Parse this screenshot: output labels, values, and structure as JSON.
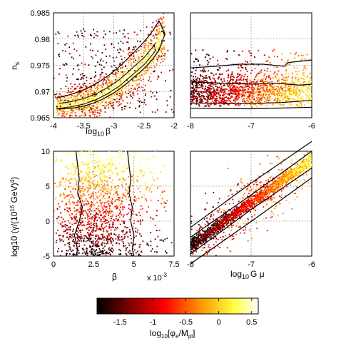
{
  "chart_data": [
    {
      "type": "scatter",
      "panel": "top-left",
      "xlabel": "log10 β",
      "ylabel": "ns",
      "xlim": [
        -4,
        -2
      ],
      "ylim": [
        0.965,
        0.985
      ],
      "xticks": [
        "-4",
        "-3.5",
        "-3",
        "-2.5",
        "-2"
      ],
      "yticks": [
        "0.965",
        "0.97",
        "0.975",
        "0.98",
        "0.985"
      ],
      "grid": true,
      "color_variable": "log10[φe/Mpl]",
      "band": {
        "x": [
          -3.9,
          -3.7,
          -3.5,
          -3.3,
          -3.1,
          -2.9,
          -2.7,
          -2.5,
          -2.35,
          -2.2
        ],
        "y": [
          0.9672,
          0.9675,
          0.968,
          0.9688,
          0.97,
          0.9715,
          0.9735,
          0.9755,
          0.9775,
          0.98
        ],
        "color_at_center": 0.3
      }
    },
    {
      "type": "scatter",
      "panel": "top-right",
      "xlabel": "",
      "ylabel": "",
      "xlim": [
        -8,
        -6
      ],
      "ylim": [
        0.965,
        0.985
      ],
      "xticks": [
        "-8",
        "-7",
        "-6"
      ],
      "grid": true,
      "color_variable": "log10[φe/Mpl]",
      "trend": "color increases with log10 Gμ; points spread 0.9665–0.976"
    },
    {
      "type": "scatter",
      "panel": "bottom-left",
      "xlabel": "β",
      "xscale_label": "x 10",
      "xscale_exponent": "-3",
      "ylabel": "log10 (γ/(10",
      "ylabel_exp1": "16",
      "ylabel_mid": " GeV)",
      "ylabel_exp2": "4",
      "ylabel_end": ")",
      "xlim": [
        0,
        7.5
      ],
      "ylim": [
        -5,
        10
      ],
      "xticks": [
        "0",
        "2.5",
        "5",
        "7.5"
      ],
      "yticks": [
        "-5",
        "0",
        "5",
        "10"
      ],
      "grid": true,
      "color_variable": "log10[φe/Mpl]",
      "trend": "color increases with y; points concentrated at β < 5"
    },
    {
      "type": "scatter",
      "panel": "bottom-right",
      "xlabel": "log10 G μ",
      "ylabel": "",
      "xlim": [
        -8,
        -6
      ],
      "ylim": [
        -5,
        10
      ],
      "xticks": [
        "-8",
        "-7",
        "-6"
      ],
      "grid": true,
      "color_variable": "log10[φe/Mpl]",
      "band": {
        "x": [
          -8,
          -7.5,
          -7,
          -6.5,
          -6
        ],
        "y": [
          -3.5,
          -0.3,
          2.8,
          5.8,
          8.8
        ]
      }
    }
  ],
  "colorbar": {
    "label_main": "log",
    "label_sub": "10",
    "label_rest": "[φ",
    "label_sub2": "e",
    "label_mid": "/M",
    "label_sub3": "pl",
    "label_end": "]",
    "ticks": [
      "-1.5",
      "-1",
      "-0.5",
      "0",
      "0.5"
    ],
    "range": [
      -1.85,
      0.6
    ],
    "colormap": [
      "#000000",
      "#7a0000",
      "#ff0000",
      "#ff9a00",
      "#ffff40",
      "#ffffff"
    ]
  },
  "labels": {
    "tl_y_main": "n",
    "tl_y_sub": "s",
    "tl_x_main": "log",
    "tl_x_sub": "10",
    "tl_x_sym": "β",
    "br_x_main": "log",
    "br_x_sub": "10",
    "br_x_sym": "G μ",
    "bl_x_sym": "β",
    "bl_scale_main": "x 10",
    "bl_scale_exp": "-3"
  }
}
